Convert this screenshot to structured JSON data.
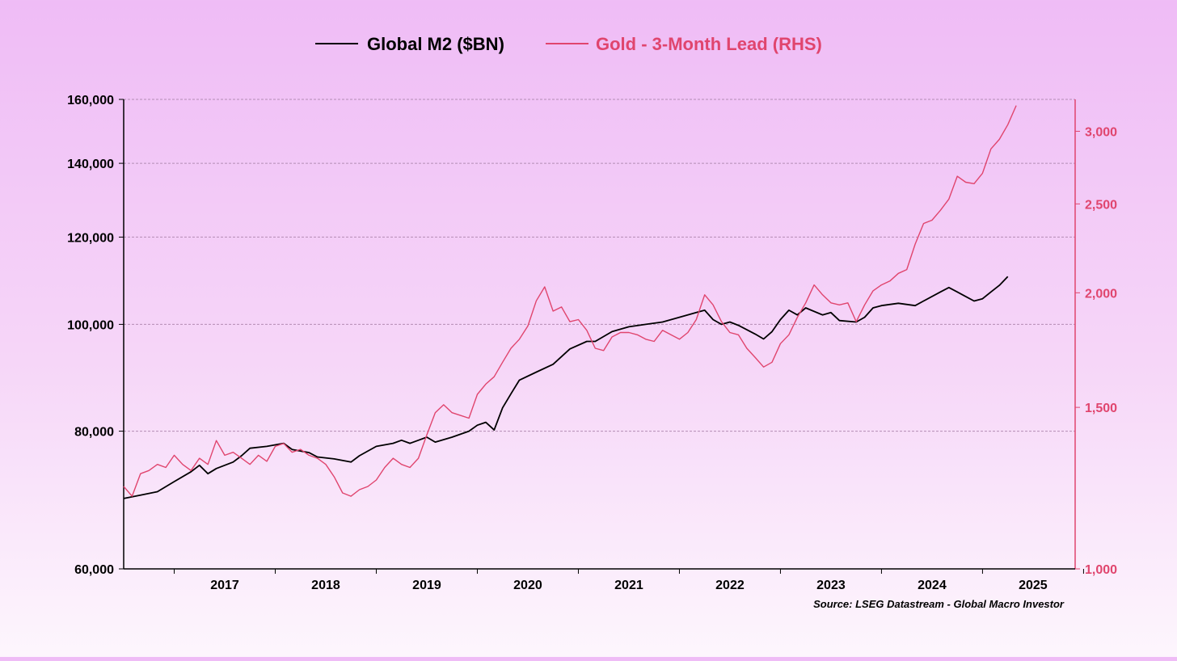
{
  "chart_data": {
    "type": "line",
    "legend": {
      "placement": "top-center"
    },
    "source": "Source: LSEG Datastream - Global Macro Investor",
    "colors": {
      "m2": "#000000",
      "gold": "#e0456e",
      "grid": "#b48cb4",
      "axis": "#000000",
      "rhs_axis": "#e0456e"
    },
    "x_axis": {
      "range": [
        "2016-07",
        "2025-12"
      ],
      "ticks": [
        "2017",
        "2018",
        "2019",
        "2020",
        "2021",
        "2022",
        "2023",
        "2024",
        "2025"
      ]
    },
    "y_left": {
      "scale": "log",
      "range": [
        60000,
        160000
      ],
      "ticks": [
        {
          "value": 60000,
          "label": "60,000"
        },
        {
          "value": 80000,
          "label": "80,000"
        },
        {
          "value": 100000,
          "label": "100,000"
        },
        {
          "value": 120000,
          "label": "120,000"
        },
        {
          "value": 140000,
          "label": "140,000"
        },
        {
          "value": 160000,
          "label": "160,000"
        }
      ]
    },
    "y_right": {
      "scale": "log",
      "range": [
        1000,
        3250
      ],
      "ticks": [
        {
          "value": 1000,
          "label": "1,000"
        },
        {
          "value": 1500,
          "label": "1,500"
        },
        {
          "value": 2000,
          "label": "2,000"
        },
        {
          "value": 2500,
          "label": "2,500"
        },
        {
          "value": 3000,
          "label": "3,000"
        }
      ]
    },
    "grid": true,
    "series": [
      {
        "name": "Global M2 ($BN)",
        "axis": "left",
        "color": "#000000",
        "points": [
          [
            "2016-07",
            69500
          ],
          [
            "2016-09",
            70000
          ],
          [
            "2016-11",
            70500
          ],
          [
            "2017-01",
            72000
          ],
          [
            "2017-03",
            73500
          ],
          [
            "2017-04",
            74500
          ],
          [
            "2017-05",
            73200
          ],
          [
            "2017-06",
            74000
          ],
          [
            "2017-08",
            75000
          ],
          [
            "2017-09",
            76000
          ],
          [
            "2017-10",
            77200
          ],
          [
            "2017-12",
            77500
          ],
          [
            "2018-02",
            78000
          ],
          [
            "2018-03",
            77000
          ],
          [
            "2018-05",
            76500
          ],
          [
            "2018-06",
            75800
          ],
          [
            "2018-08",
            75500
          ],
          [
            "2018-10",
            75000
          ],
          [
            "2018-11",
            76000
          ],
          [
            "2019-01",
            77500
          ],
          [
            "2019-03",
            78000
          ],
          [
            "2019-04",
            78500
          ],
          [
            "2019-05",
            78000
          ],
          [
            "2019-06",
            78500
          ],
          [
            "2019-07",
            79000
          ],
          [
            "2019-08",
            78200
          ],
          [
            "2019-10",
            79000
          ],
          [
            "2019-12",
            80000
          ],
          [
            "2020-01",
            81000
          ],
          [
            "2020-02",
            81500
          ],
          [
            "2020-03",
            80200
          ],
          [
            "2020-04",
            84000
          ],
          [
            "2020-05",
            86500
          ],
          [
            "2020-06",
            89000
          ],
          [
            "2020-08",
            90500
          ],
          [
            "2020-10",
            92000
          ],
          [
            "2020-12",
            95000
          ],
          [
            "2021-02",
            96500
          ],
          [
            "2021-03",
            96500
          ],
          [
            "2021-05",
            98500
          ],
          [
            "2021-07",
            99500
          ],
          [
            "2021-09",
            100000
          ],
          [
            "2021-11",
            100500
          ],
          [
            "2022-01",
            101500
          ],
          [
            "2022-03",
            102500
          ],
          [
            "2022-04",
            103000
          ],
          [
            "2022-05",
            101000
          ],
          [
            "2022-06",
            100000
          ],
          [
            "2022-07",
            100500
          ],
          [
            "2022-08",
            99800
          ],
          [
            "2022-10",
            98000
          ],
          [
            "2022-11",
            97000
          ],
          [
            "2022-12",
            98500
          ],
          [
            "2023-01",
            101000
          ],
          [
            "2023-02",
            103000
          ],
          [
            "2023-03",
            102000
          ],
          [
            "2023-04",
            103500
          ],
          [
            "2023-06",
            102000
          ],
          [
            "2023-07",
            102500
          ],
          [
            "2023-08",
            100800
          ],
          [
            "2023-10",
            100500
          ],
          [
            "2023-11",
            101500
          ],
          [
            "2023-12",
            103500
          ],
          [
            "2024-01",
            104000
          ],
          [
            "2024-03",
            104500
          ],
          [
            "2024-05",
            104000
          ],
          [
            "2024-06",
            105000
          ],
          [
            "2024-08",
            107000
          ],
          [
            "2024-09",
            108000
          ],
          [
            "2024-10",
            107000
          ],
          [
            "2024-11",
            106000
          ],
          [
            "2024-12",
            105000
          ],
          [
            "2025-01",
            105500
          ],
          [
            "2025-02",
            107000
          ],
          [
            "2025-03",
            108500
          ],
          [
            "2025-04",
            110500
          ]
        ]
      },
      {
        "name": "Gold - 3-Month Lead (RHS)",
        "axis": "right",
        "color": "#e0456e",
        "points": [
          [
            "2016-07",
            1230
          ],
          [
            "2016-08",
            1200
          ],
          [
            "2016-09",
            1270
          ],
          [
            "2016-10",
            1280
          ],
          [
            "2016-11",
            1300
          ],
          [
            "2016-12",
            1290
          ],
          [
            "2017-01",
            1330
          ],
          [
            "2017-02",
            1300
          ],
          [
            "2017-03",
            1280
          ],
          [
            "2017-04",
            1320
          ],
          [
            "2017-05",
            1300
          ],
          [
            "2017-06",
            1380
          ],
          [
            "2017-07",
            1330
          ],
          [
            "2017-08",
            1340
          ],
          [
            "2017-09",
            1320
          ],
          [
            "2017-10",
            1300
          ],
          [
            "2017-11",
            1330
          ],
          [
            "2017-12",
            1310
          ],
          [
            "2018-01",
            1360
          ],
          [
            "2018-02",
            1370
          ],
          [
            "2018-03",
            1340
          ],
          [
            "2018-04",
            1350
          ],
          [
            "2018-05",
            1330
          ],
          [
            "2018-06",
            1320
          ],
          [
            "2018-07",
            1300
          ],
          [
            "2018-08",
            1260
          ],
          [
            "2018-09",
            1210
          ],
          [
            "2018-10",
            1200
          ],
          [
            "2018-11",
            1220
          ],
          [
            "2018-12",
            1230
          ],
          [
            "2019-01",
            1250
          ],
          [
            "2019-02",
            1290
          ],
          [
            "2019-03",
            1320
          ],
          [
            "2019-04",
            1300
          ],
          [
            "2019-05",
            1290
          ],
          [
            "2019-06",
            1320
          ],
          [
            "2019-07",
            1400
          ],
          [
            "2019-08",
            1480
          ],
          [
            "2019-09",
            1510
          ],
          [
            "2019-10",
            1480
          ],
          [
            "2019-11",
            1470
          ],
          [
            "2019-12",
            1460
          ],
          [
            "2020-01",
            1550
          ],
          [
            "2020-02",
            1590
          ],
          [
            "2020-03",
            1620
          ],
          [
            "2020-04",
            1680
          ],
          [
            "2020-05",
            1740
          ],
          [
            "2020-06",
            1780
          ],
          [
            "2020-07",
            1840
          ],
          [
            "2020-08",
            1960
          ],
          [
            "2020-09",
            2030
          ],
          [
            "2020-10",
            1910
          ],
          [
            "2020-11",
            1930
          ],
          [
            "2020-12",
            1860
          ],
          [
            "2021-01",
            1870
          ],
          [
            "2021-02",
            1820
          ],
          [
            "2021-03",
            1740
          ],
          [
            "2021-04",
            1730
          ],
          [
            "2021-05",
            1790
          ],
          [
            "2021-06",
            1810
          ],
          [
            "2021-07",
            1810
          ],
          [
            "2021-08",
            1800
          ],
          [
            "2021-09",
            1780
          ],
          [
            "2021-10",
            1770
          ],
          [
            "2021-11",
            1820
          ],
          [
            "2021-12",
            1800
          ],
          [
            "2022-01",
            1780
          ],
          [
            "2022-02",
            1810
          ],
          [
            "2022-03",
            1870
          ],
          [
            "2022-04",
            1990
          ],
          [
            "2022-05",
            1940
          ],
          [
            "2022-06",
            1860
          ],
          [
            "2022-07",
            1810
          ],
          [
            "2022-08",
            1800
          ],
          [
            "2022-09",
            1740
          ],
          [
            "2022-10",
            1700
          ],
          [
            "2022-11",
            1660
          ],
          [
            "2022-12",
            1680
          ],
          [
            "2023-01",
            1760
          ],
          [
            "2023-02",
            1800
          ],
          [
            "2023-03",
            1880
          ],
          [
            "2023-04",
            1950
          ],
          [
            "2023-05",
            2040
          ],
          [
            "2023-06",
            1990
          ],
          [
            "2023-07",
            1950
          ],
          [
            "2023-08",
            1940
          ],
          [
            "2023-09",
            1950
          ],
          [
            "2023-10",
            1860
          ],
          [
            "2023-11",
            1940
          ],
          [
            "2023-12",
            2010
          ],
          [
            "2024-01",
            2040
          ],
          [
            "2024-02",
            2060
          ],
          [
            "2024-03",
            2100
          ],
          [
            "2024-04",
            2120
          ],
          [
            "2024-05",
            2260
          ],
          [
            "2024-06",
            2380
          ],
          [
            "2024-07",
            2400
          ],
          [
            "2024-08",
            2460
          ],
          [
            "2024-09",
            2530
          ],
          [
            "2024-10",
            2680
          ],
          [
            "2024-11",
            2640
          ],
          [
            "2024-12",
            2630
          ],
          [
            "2025-01",
            2700
          ],
          [
            "2025-02",
            2870
          ],
          [
            "2025-03",
            2940
          ],
          [
            "2025-04",
            3050
          ],
          [
            "2025-05",
            3200
          ]
        ]
      }
    ]
  }
}
